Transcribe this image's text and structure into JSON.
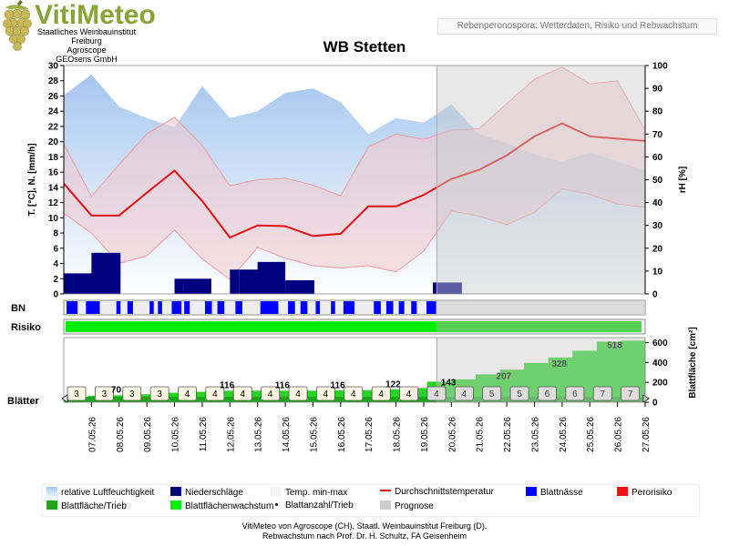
{
  "brand": {
    "name": "VitiMeteo",
    "sub_lines": [
      "Staatliches Weinbauinstitut Freiburg",
      "Agroscope",
      "GEOsens GmbH"
    ],
    "grape_icon": "grape-cluster-icon"
  },
  "header_tag": "Rebenperonospora: Wetterdaten, Risiko und Rebwachstum",
  "footer_lines": [
    "VitiMeteo von Agroscope (CH), Staatl. Weinbauinstitut Freiburg (D).",
    "Rebwachstum nach Prof. Dr. H. Schultz, FA Geisenheim"
  ],
  "colors": {
    "rh": "#a9c9ef",
    "precip": "#000080",
    "temp_band": "#f4c8cc",
    "avg_temp": "#e21010",
    "leaf_wetness": "#0000ff",
    "risk": "#00ee00",
    "forecast": "#cccccc"
  },
  "legend": [
    {
      "label": "relative Luftfeuchtigkeit",
      "swatch": "rh"
    },
    {
      "label": "Niederschläge",
      "swatch": "precip"
    },
    {
      "label": "Temp. min-max",
      "swatch": "band"
    },
    {
      "label": "Durchschnittstemperatur",
      "swatch": "line"
    },
    {
      "label": "Blattnässe",
      "swatch": "wet"
    },
    {
      "label": "Perorisiko",
      "swatch": "risk_red"
    },
    {
      "label": "Blattfläche/Trieb",
      "swatch": "leaf_area"
    },
    {
      "label": "Blattflächenwachstum",
      "swatch": "growth"
    },
    {
      "label": "Blattanzahl/Trieb",
      "swatch": "dot"
    },
    {
      "label": "Prognose",
      "swatch": "forecast"
    }
  ],
  "chart_data": {
    "type": "line",
    "title": "WB Stetten",
    "dates": [
      "07.05.26",
      "08.05.26",
      "09.05.26",
      "10.05.26",
      "11.05.26",
      "12.05.26",
      "13.05.26",
      "14.05.26",
      "15.05.26",
      "16.05.26",
      "17.05.26",
      "18.05.26",
      "19.05.26",
      "20.05.26",
      "21.05.26",
      "22.05.26",
      "23.05.26",
      "24.05.26",
      "25.05.26",
      "26.05.26",
      "27.05.26"
    ],
    "forecast_start": "20.05.26",
    "weather": {
      "ylabel_left": "T. [°C], N. [mm/h]",
      "ylabel_right": "rH [%]",
      "ylim_left": [
        0,
        30
      ],
      "ylim_right": [
        0,
        100
      ],
      "left_ticks": [
        0,
        2,
        4,
        6,
        8,
        10,
        12,
        14,
        16,
        18,
        20,
        22,
        24,
        26,
        28,
        30
      ],
      "right_ticks": [
        0,
        10,
        20,
        30,
        40,
        50,
        60,
        70,
        80,
        90,
        100
      ],
      "x": [
        0,
        1,
        2,
        3,
        4,
        5,
        6,
        7,
        8,
        9,
        10,
        11,
        12,
        13,
        14,
        15,
        16,
        17,
        18,
        19,
        20,
        21
      ],
      "rh": [
        87,
        96,
        82,
        77,
        73,
        91,
        77,
        80,
        88,
        90,
        84,
        70,
        77,
        75,
        83,
        70,
        66,
        61,
        58,
        62,
        58,
        54
      ],
      "temp_max": [
        19.7,
        12.8,
        17.0,
        21.0,
        23.2,
        19.5,
        14.2,
        15.0,
        15.2,
        14.3,
        12.9,
        19.3,
        21.0,
        20.3,
        21.5,
        21.7,
        25.0,
        28.2,
        29.8,
        27.6,
        28.0,
        21.5
      ],
      "temp_min": [
        10.6,
        8.0,
        4.0,
        5.0,
        8.4,
        4.6,
        1.9,
        6.1,
        4.7,
        3.7,
        3.4,
        3.7,
        2.9,
        5.6,
        10.9,
        10.2,
        9.1,
        10.7,
        13.8,
        13.1,
        11.8,
        11.4
      ],
      "temp_avg": [
        14.5,
        10.3,
        10.3,
        13.3,
        16.2,
        12.2,
        7.4,
        9.0,
        8.9,
        7.6,
        7.9,
        11.5,
        11.5,
        13.0,
        15.1,
        16.3,
        18.2,
        20.7,
        22.4,
        20.7,
        20.4,
        20.1
      ],
      "precip_x": [
        0,
        0.33,
        1,
        4,
        4.33,
        6,
        6.33,
        7,
        8,
        13.33
      ],
      "precip_w": [
        0.33,
        1.05,
        1.05,
        0.33,
        1.0,
        0.33,
        1.0,
        1.0,
        1.05,
        1.05
      ],
      "precip": [
        2.7,
        2.7,
        5.4,
        2.0,
        2.0,
        3.2,
        3.2,
        4.2,
        1.8,
        1.5
      ]
    },
    "leaf_wetness": {
      "label": "BN",
      "wet_intervals": [
        [
          0.1,
          0.5
        ],
        [
          0.8,
          1.3
        ],
        [
          1.9,
          2.05
        ],
        [
          2.3,
          2.5
        ],
        [
          3.1,
          3.25
        ],
        [
          3.4,
          3.55
        ],
        [
          3.9,
          4.25
        ],
        [
          4.35,
          4.55
        ],
        [
          5.1,
          5.35
        ],
        [
          5.55,
          5.8
        ],
        [
          6.2,
          6.45
        ],
        [
          7.1,
          7.75
        ],
        [
          8.1,
          8.35
        ],
        [
          8.55,
          8.8
        ],
        [
          9.1,
          9.25
        ],
        [
          9.65,
          9.8
        ],
        [
          10.1,
          10.5
        ],
        [
          11.2,
          11.45
        ],
        [
          11.65,
          11.9
        ],
        [
          12.1,
          12.3
        ],
        [
          12.55,
          12.75
        ],
        [
          13.1,
          13.45
        ]
      ]
    },
    "risk": {
      "label": "Risiko",
      "level_fraction": 1.0
    },
    "growth": {
      "label_left": "Blätter",
      "ylabel_right": "Blattfläche [cm²]",
      "ylim_right": [
        0,
        650
      ],
      "right_ticks": [
        0,
        200,
        400,
        600
      ],
      "leaf_area": [
        45,
        65,
        70,
        80,
        95,
        105,
        116,
        116,
        116,
        116,
        116,
        120,
        122,
        130,
        143,
        207,
        230,
        280,
        328,
        395,
        450,
        518,
        610,
        620
      ],
      "leaf_area_labels": [
        {
          "x": 1.5,
          "v": "70"
        },
        {
          "x": 5.5,
          "v": "116"
        },
        {
          "x": 7.5,
          "v": "116"
        },
        {
          "x": 9.5,
          "v": "116"
        },
        {
          "x": 11.5,
          "v": "122"
        },
        {
          "x": 13.5,
          "v": "143"
        },
        {
          "x": 15.5,
          "v": "207"
        },
        {
          "x": 17.5,
          "v": "328"
        },
        {
          "x": 19.5,
          "v": "518"
        }
      ],
      "leaf_count": [
        3,
        3,
        3,
        3,
        4,
        4,
        4,
        4,
        4,
        4,
        4,
        4,
        4,
        4,
        4,
        5,
        5,
        6,
        6,
        7,
        7
      ]
    }
  }
}
